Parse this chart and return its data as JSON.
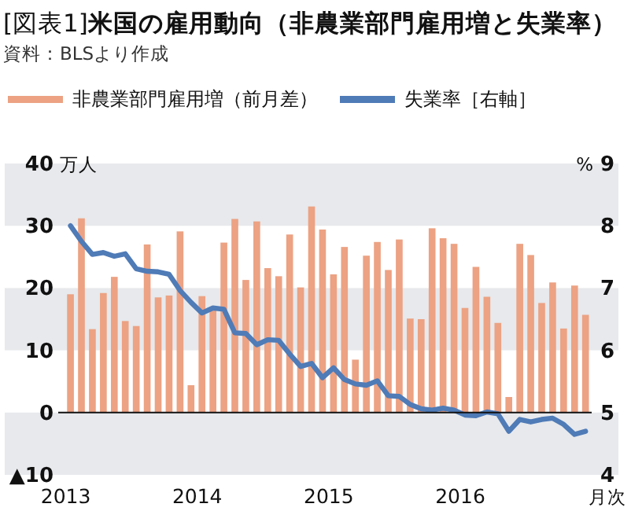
{
  "chart_data": {
    "type": "bar",
    "title": "[図表1]**米国の雇用動向（非農業部門雇用増と失業率）**",
    "annotations": [
      "資料：BLSより作成"
    ],
    "x": [
      "2013-01",
      "2013-02",
      "2013-03",
      "2013-04",
      "2013-05",
      "2013-06",
      "2013-07",
      "2013-08",
      "2013-09",
      "2013-10",
      "2013-11",
      "2013-12",
      "2014-01",
      "2014-02",
      "2014-03",
      "2014-04",
      "2014-05",
      "2014-06",
      "2014-07",
      "2014-08",
      "2014-09",
      "2014-10",
      "2014-11",
      "2014-12",
      "2015-01",
      "2015-02",
      "2015-03",
      "2015-04",
      "2015-05",
      "2015-06",
      "2015-07",
      "2015-08",
      "2015-09",
      "2015-10",
      "2015-11",
      "2015-12",
      "2016-01",
      "2016-02",
      "2016-03",
      "2016-04",
      "2016-05",
      "2016-06",
      "2016-07",
      "2016-08",
      "2016-09",
      "2016-10",
      "2016-11",
      "2016-12"
    ],
    "xlim": [
      "2012-07",
      "2017-03"
    ],
    "xticks": [
      {
        "value": "2013-01",
        "label": "2013"
      },
      {
        "value": "2014-01",
        "label": "2014"
      },
      {
        "value": "2015-01",
        "label": "2015"
      },
      {
        "value": "2016-01",
        "label": "2016"
      }
    ],
    "xlabel": "月次",
    "ylabel": "万人",
    "y2label": "%",
    "ylim": [
      -10,
      40
    ],
    "yticks": [
      {
        "value": -10,
        "label": "▲10"
      },
      0,
      10,
      20,
      30,
      40
    ],
    "y2lim": [
      4,
      9
    ],
    "y2ticks": [
      4,
      5,
      6,
      7,
      8,
      9
    ],
    "legend": "top",
    "bands": [
      {
        "axis": "y",
        "from": 30,
        "to": 40,
        "color": "#e7e9ec"
      },
      {
        "axis": "y",
        "from": 10,
        "to": 20,
        "color": "#e7e9ec"
      },
      {
        "axis": "y",
        "from": -10,
        "to": 0,
        "color": "#e7e9ec"
      }
    ],
    "ref_lines": [
      {
        "axis": "y",
        "value": 0,
        "color": "#111111"
      }
    ],
    "series": [
      {
        "name": "非農業部門雇用増（前月差）",
        "color": "#eca283",
        "values": [
          19.0,
          31.2,
          13.4,
          19.2,
          21.8,
          14.7,
          13.9,
          27.0,
          18.5,
          18.8,
          29.1,
          4.4,
          18.7,
          16.4,
          27.3,
          31.1,
          21.3,
          30.7,
          23.2,
          21.9,
          28.6,
          20.1,
          33.1,
          29.4,
          22.2,
          26.6,
          8.5,
          25.2,
          27.4,
          22.9,
          27.8,
          15.1,
          15.0,
          29.6,
          28.0,
          27.1,
          16.8,
          23.4,
          18.6,
          14.4,
          2.5,
          27.1,
          25.3,
          17.6,
          20.9,
          13.5,
          20.4,
          15.7
        ]
      },
      {
        "name": "失業率［右軸］",
        "type": "line",
        "axis": "y2",
        "color": "#4f7bb7",
        "values": [
          8.0,
          7.75,
          7.54,
          7.57,
          7.51,
          7.55,
          7.31,
          7.27,
          7.26,
          7.22,
          6.96,
          6.77,
          6.6,
          6.68,
          6.66,
          6.28,
          6.27,
          6.09,
          6.17,
          6.16,
          5.94,
          5.74,
          5.79,
          5.56,
          5.72,
          5.53,
          5.46,
          5.44,
          5.51,
          5.27,
          5.26,
          5.13,
          5.06,
          5.04,
          5.07,
          5.04,
          4.96,
          4.95,
          5.01,
          4.98,
          4.7,
          4.89,
          4.85,
          4.89,
          4.91,
          4.81,
          4.65,
          4.7
        ]
      }
    ]
  }
}
